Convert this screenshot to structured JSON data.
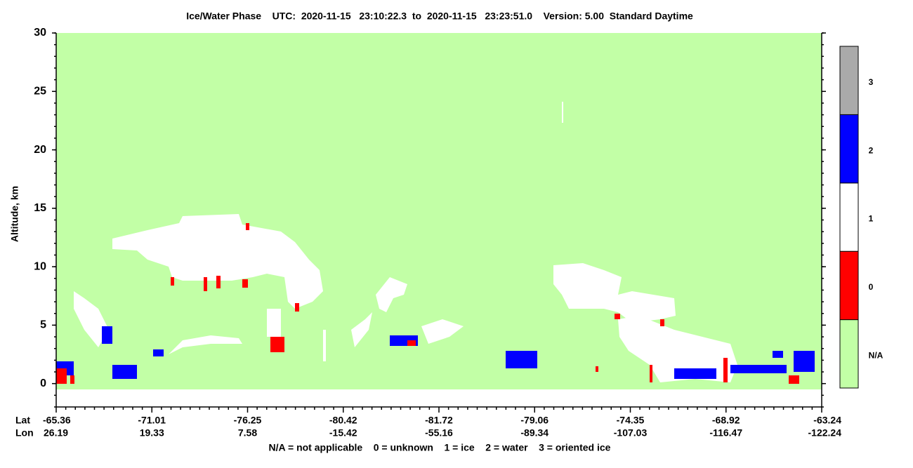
{
  "chart_data": {
    "type": "curtain",
    "title": "Ice/Water Phase    UTC:  2020-11-15   23:10:22.3  to  2020-11-15   23:23:51.0    Version: 5.00  Standard Daytime",
    "ylabel": "Altitude, km",
    "ylim": [
      -2,
      30
    ],
    "yticks": [
      0,
      5,
      10,
      15,
      20,
      25,
      30
    ],
    "x_row_labels": [
      "Lat",
      "Lon"
    ],
    "lat": [
      -65.36,
      -71.01,
      -76.25,
      -80.42,
      -81.72,
      -79.06,
      -74.35,
      -68.92,
      -63.24
    ],
    "lon": [
      26.19,
      19.33,
      7.58,
      -15.42,
      -55.16,
      -89.34,
      -107.03,
      -116.47,
      -122.24
    ],
    "colorbar": {
      "labels": [
        "N/A",
        "0",
        "1",
        "2",
        "3"
      ],
      "colors": [
        "#c2ffa6",
        "#ff0000",
        "#ffffff",
        "#0000ff",
        "#aaaaaa"
      ]
    },
    "legend_text": "N/A = not applicable    0 = unknown    1 = ice    2 = water    3 = oriented ice"
  }
}
